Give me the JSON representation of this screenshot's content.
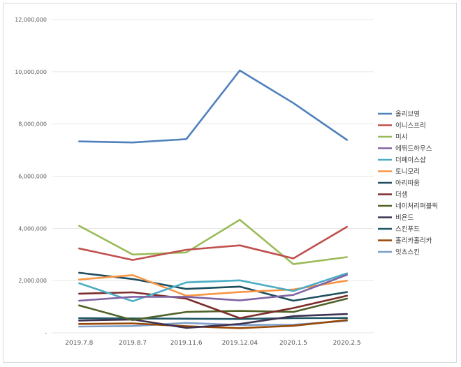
{
  "chart_data": {
    "type": "line",
    "title": "",
    "xlabel": "",
    "ylabel": "",
    "categories": [
      "2019.7.8",
      "2019.8.7",
      "2019.11.6",
      "2019.12.04",
      "2020.1.5",
      "2020.2.5"
    ],
    "ylim": [
      0,
      12000000
    ],
    "yticks": [
      0,
      2000000,
      4000000,
      6000000,
      8000000,
      10000000,
      12000000
    ],
    "ytick_labels": [
      "-",
      "2,000,000",
      "4,000,000",
      "6,000,000",
      "8,000,000",
      "10,000,000",
      "12,000,000"
    ],
    "grid": true,
    "legend_position": "right",
    "series": [
      {
        "name": "올리브영",
        "color": "#4f81bd",
        "values": [
          7330000,
          7290000,
          7420000,
          10050000,
          8800000,
          7390000
        ]
      },
      {
        "name": "이니스프리",
        "color": "#c0504d",
        "values": [
          3230000,
          2790000,
          3180000,
          3350000,
          2850000,
          4060000
        ]
      },
      {
        "name": "미샤",
        "color": "#9bbb59",
        "values": [
          4100000,
          3000000,
          3080000,
          4330000,
          2630000,
          2900000
        ]
      },
      {
        "name": "에뛰드하우스",
        "color": "#8064a2",
        "values": [
          1230000,
          1380000,
          1380000,
          1240000,
          1450000,
          2220000
        ]
      },
      {
        "name": "더페이스샵",
        "color": "#4bacc6",
        "values": [
          1900000,
          1210000,
          1930000,
          2010000,
          1600000,
          2280000
        ]
      },
      {
        "name": "토니모리",
        "color": "#f79646",
        "values": [
          2040000,
          2210000,
          1420000,
          1560000,
          1660000,
          2000000
        ]
      },
      {
        "name": "아리따움",
        "color": "#1f4e5f",
        "values": [
          2300000,
          2060000,
          1680000,
          1770000,
          1230000,
          1560000
        ]
      },
      {
        "name": "더샘",
        "color": "#7b2c2a",
        "values": [
          1500000,
          1550000,
          1310000,
          560000,
          950000,
          1420000
        ]
      },
      {
        "name": "네이처리퍼블릭",
        "color": "#4f6228",
        "values": [
          1050000,
          490000,
          800000,
          840000,
          800000,
          1310000
        ]
      },
      {
        "name": "비욘드",
        "color": "#3f3151",
        "values": [
          470000,
          510000,
          190000,
          340000,
          640000,
          720000
        ]
      },
      {
        "name": "스킨푸드",
        "color": "#215967",
        "values": [
          560000,
          550000,
          540000,
          530000,
          560000,
          570000
        ]
      },
      {
        "name": "홀리카홀리카",
        "color": "#984807",
        "values": [
          340000,
          360000,
          250000,
          180000,
          270000,
          490000
        ]
      },
      {
        "name": "잇츠스킨",
        "color": "#7f9fc8",
        "values": [
          240000,
          260000,
          380000,
          300000,
          310000,
          460000
        ]
      }
    ]
  }
}
